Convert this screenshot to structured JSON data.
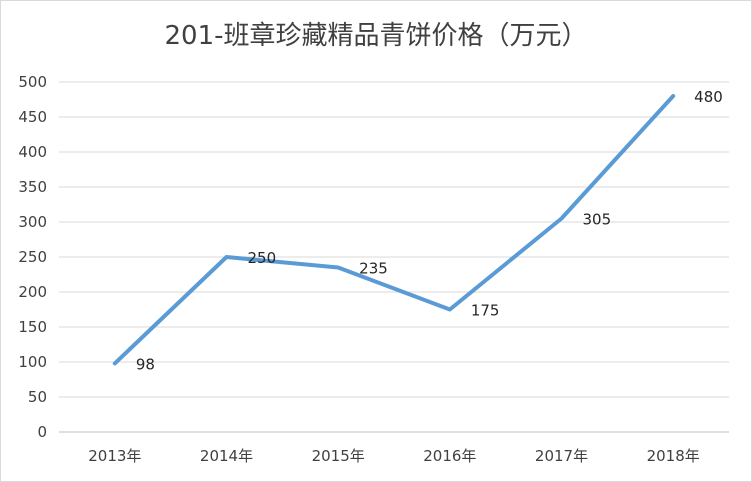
{
  "chart_data": {
    "type": "line",
    "title": "201-班章珍藏精品青饼价格（万元）",
    "categories": [
      "2013年",
      "2014年",
      "2015年",
      "2016年",
      "2017年",
      "2018年"
    ],
    "series": [
      {
        "values": [
          98,
          250,
          235,
          175,
          305,
          480
        ]
      }
    ],
    "ylim": [
      0,
      500
    ],
    "yticks": [
      0,
      50,
      100,
      150,
      200,
      250,
      300,
      350,
      400,
      450,
      500
    ],
    "grid": true,
    "data_labels": true,
    "colors": {
      "line": "#5b9bd5",
      "grid": "#d9d9d9",
      "axis": "#bfbfbf"
    }
  }
}
